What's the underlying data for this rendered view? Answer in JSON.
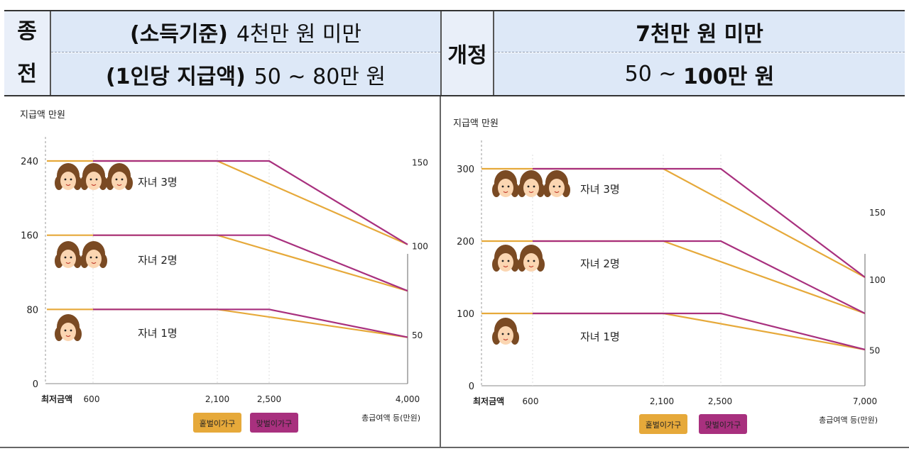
{
  "header": {
    "before_tag_line1": "종",
    "before_tag_line2": "전",
    "before_income_label": "(소득기준)",
    "before_income_value": "4천만 원 미만",
    "before_amount_label": "(1인당 지급액)",
    "before_amount_value": "50 ~ 80만 원",
    "after_tag": "개정",
    "after_income_value": "7천만 원 미만",
    "after_amount_prefix": "50 ~ ",
    "after_amount_bold": "100만 원"
  },
  "colors": {
    "single_earner": "#e6a93a",
    "dual_earner": "#a8307e",
    "header_bg": "#dde8f7"
  },
  "chart_data": [
    {
      "type": "line",
      "ylabel": "지급액 만원",
      "xlabel": "총급여액 등(만원)",
      "y_ticks": [
        0,
        80,
        160,
        240
      ],
      "right_ticks": [
        50,
        100,
        150
      ],
      "x_ticks": [
        "최저금액",
        "600",
        "2,100",
        "2,500",
        "4,000"
      ],
      "ylim": [
        0,
        260
      ],
      "groups": [
        {
          "label": "자녀 3명",
          "children": 3
        },
        {
          "label": "자녀 2명",
          "children": 2
        },
        {
          "label": "자녀 1명",
          "children": 1
        }
      ],
      "series": [
        {
          "name": "홑벌이가구",
          "role": "single",
          "lines": [
            {
              "x": [
                0,
                2100,
                4000
              ],
              "y": [
                240,
                240,
                150
              ]
            },
            {
              "x": [
                0,
                2100,
                4000
              ],
              "y": [
                160,
                160,
                100
              ]
            },
            {
              "x": [
                0,
                2100,
                4000
              ],
              "y": [
                80,
                80,
                50
              ]
            }
          ]
        },
        {
          "name": "맞벌이가구",
          "role": "dual",
          "lines": [
            {
              "x": [
                600,
                2500,
                4000
              ],
              "y": [
                240,
                240,
                150
              ]
            },
            {
              "x": [
                600,
                2500,
                4000
              ],
              "y": [
                160,
                160,
                100
              ]
            },
            {
              "x": [
                600,
                2500,
                4000
              ],
              "y": [
                80,
                80,
                50
              ]
            }
          ]
        }
      ]
    },
    {
      "type": "line",
      "ylabel": "지급액 만원",
      "xlabel": "총급여액 등(만원)",
      "y_ticks": [
        0,
        100,
        200,
        300
      ],
      "right_ticks": [
        50,
        100,
        150
      ],
      "x_ticks": [
        "최저금액",
        "600",
        "2,100",
        "2,500",
        "7,000"
      ],
      "ylim": [
        0,
        330
      ],
      "groups": [
        {
          "label": "자녀 3명",
          "children": 3
        },
        {
          "label": "자녀 2명",
          "children": 2
        },
        {
          "label": "자녀 1명",
          "children": 1
        }
      ],
      "series": [
        {
          "name": "홑벌이가구",
          "role": "single",
          "lines": [
            {
              "x": [
                0,
                2100,
                7000
              ],
              "y": [
                300,
                300,
                150
              ]
            },
            {
              "x": [
                0,
                2100,
                7000
              ],
              "y": [
                200,
                200,
                100
              ]
            },
            {
              "x": [
                0,
                2100,
                7000
              ],
              "y": [
                100,
                100,
                50
              ]
            }
          ]
        },
        {
          "name": "맞벌이가구",
          "role": "dual",
          "lines": [
            {
              "x": [
                600,
                2500,
                7000
              ],
              "y": [
                300,
                300,
                150
              ]
            },
            {
              "x": [
                600,
                2500,
                7000
              ],
              "y": [
                200,
                200,
                100
              ]
            },
            {
              "x": [
                600,
                2500,
                7000
              ],
              "y": [
                100,
                100,
                50
              ]
            }
          ]
        }
      ]
    }
  ]
}
